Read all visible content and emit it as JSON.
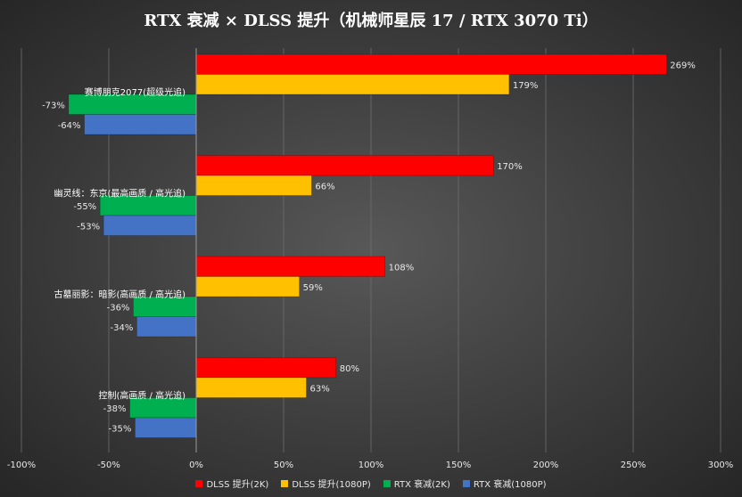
{
  "chart_data": {
    "type": "bar",
    "orientation": "horizontal",
    "title": "RTX 衰减 × DLSS 提升（机械师星辰 17 / RTX 3070 Ti）",
    "categories": [
      "赛博朋克2077(超级光追)",
      "幽灵线：东京(最高画质 / 高光追)",
      "古墓丽影：暗影(高画质 / 高光追)",
      "控制(高画质 / 高光追)"
    ],
    "series": [
      {
        "name": "DLSS 提升(2K)",
        "color": "#ff0000",
        "values": [
          269,
          170,
          108,
          80
        ]
      },
      {
        "name": "DLSS 提升(1080P)",
        "color": "#ffc000",
        "values": [
          179,
          66,
          59,
          63
        ]
      },
      {
        "name": "RTX 衰减(2K)",
        "color": "#00b050",
        "values": [
          -73,
          -55,
          -36,
          -38
        ]
      },
      {
        "name": "RTX 衰减(1080P)",
        "color": "#4472c4",
        "values": [
          -64,
          -53,
          -34,
          -35
        ]
      }
    ],
    "data_labels": [
      [
        "269%",
        "170%",
        "108%",
        "80%"
      ],
      [
        "179%",
        "66%",
        "59%",
        "63%"
      ],
      [
        "-73%",
        "-55%",
        "-36%",
        "-38%"
      ],
      [
        "-64%",
        "-53%",
        "-34%",
        "-35%"
      ]
    ],
    "x_ticks": [
      -100,
      -50,
      0,
      50,
      100,
      150,
      200,
      250,
      300
    ],
    "x_tick_labels": [
      "-100%",
      "-50%",
      "0%",
      "50%",
      "100%",
      "150%",
      "200%",
      "250%",
      "300%"
    ],
    "xlim": [
      -100,
      300
    ],
    "grid": true,
    "legend_position": "bottom"
  }
}
